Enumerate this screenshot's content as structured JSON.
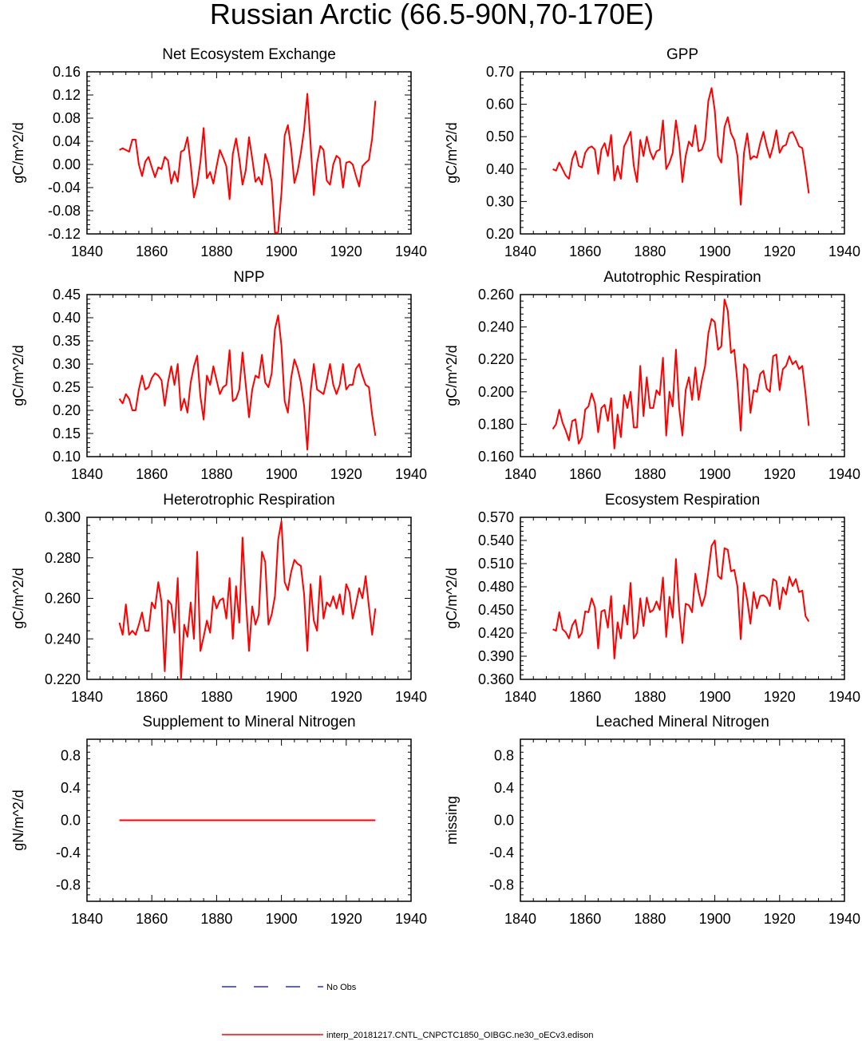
{
  "figure": {
    "title": "Russian Arctic (66.5-90N,70-170E)"
  },
  "colors": {
    "series": "#ff0000",
    "obs": "#0000cc",
    "axis": "#000000"
  },
  "legend": {
    "obs_label": "No Obs",
    "model_label": "interp_20181217.CNTL_CNPCTC1850_OIBGC.ne30_oECv3.edison"
  },
  "chart_data": [
    {
      "id": "nee",
      "type": "line",
      "title": "Net Ecosystem Exchange",
      "ylabel": "gC/m^2/d",
      "xlim": [
        1840,
        1940
      ],
      "xticks": [
        1840,
        1860,
        1880,
        1900,
        1920,
        1940
      ],
      "xtick_labels": [
        "1840",
        "1860",
        "1880",
        "1900",
        "1920",
        "1940"
      ],
      "ylim": [
        -0.12,
        0.16
      ],
      "yticks": [
        -0.12,
        -0.08,
        -0.04,
        0.0,
        0.04,
        0.08,
        0.12,
        0.16
      ],
      "ytick_labels": [
        "-0.12",
        "-0.08",
        "-0.04",
        "0.00",
        "0.04",
        "0.08",
        "0.12",
        "0.16"
      ],
      "x_start": 1850,
      "values": [
        0.025,
        0.028,
        0.025,
        0.022,
        0.043,
        0.043,
        0.0,
        -0.02,
        0.005,
        0.013,
        -0.005,
        -0.022,
        -0.005,
        -0.008,
        0.013,
        0.007,
        -0.033,
        -0.012,
        -0.03,
        0.022,
        0.025,
        0.047,
        0.0,
        -0.057,
        -0.035,
        0.005,
        0.063,
        -0.024,
        -0.013,
        -0.033,
        -0.003,
        0.025,
        0.012,
        -0.003,
        -0.06,
        0.018,
        0.045,
        0.01,
        -0.035,
        -0.01,
        0.047,
        0.01,
        -0.03,
        -0.022,
        -0.035,
        0.018,
        0.0,
        -0.03,
        -0.118,
        -0.117,
        -0.05,
        0.05,
        0.068,
        0.028,
        -0.032,
        -0.012,
        0.02,
        0.06,
        0.122,
        0.035,
        -0.053,
        0.002,
        0.032,
        0.025,
        -0.028,
        -0.035,
        0.0,
        0.015,
        0.01,
        -0.04,
        0.003,
        0.005,
        0.0,
        -0.02,
        -0.038,
        -0.003,
        0.003,
        0.008,
        0.045,
        0.11
      ]
    },
    {
      "id": "gpp",
      "type": "line",
      "title": "GPP",
      "ylabel": "gC/m^2/d",
      "xlim": [
        1840,
        1940
      ],
      "xticks": [
        1840,
        1860,
        1880,
        1900,
        1920,
        1940
      ],
      "xtick_labels": [
        "1840",
        "1860",
        "1880",
        "1900",
        "1920",
        "1940"
      ],
      "ylim": [
        0.2,
        0.7
      ],
      "yticks": [
        0.2,
        0.3,
        0.4,
        0.5,
        0.6,
        0.7
      ],
      "ytick_labels": [
        "0.20",
        "0.30",
        "0.40",
        "0.50",
        "0.60",
        "0.70"
      ],
      "x_start": 1850,
      "values": [
        0.4,
        0.395,
        0.42,
        0.4,
        0.38,
        0.37,
        0.43,
        0.455,
        0.41,
        0.405,
        0.45,
        0.465,
        0.47,
        0.46,
        0.385,
        0.46,
        0.48,
        0.44,
        0.505,
        0.365,
        0.41,
        0.37,
        0.47,
        0.49,
        0.515,
        0.41,
        0.36,
        0.49,
        0.44,
        0.5,
        0.455,
        0.43,
        0.455,
        0.46,
        0.55,
        0.4,
        0.42,
        0.45,
        0.55,
        0.48,
        0.36,
        0.44,
        0.485,
        0.47,
        0.535,
        0.455,
        0.46,
        0.49,
        0.61,
        0.65,
        0.58,
        0.44,
        0.42,
        0.53,
        0.56,
        0.51,
        0.49,
        0.44,
        0.29,
        0.45,
        0.51,
        0.43,
        0.44,
        0.435,
        0.48,
        0.515,
        0.47,
        0.435,
        0.47,
        0.52,
        0.45,
        0.47,
        0.475,
        0.51,
        0.515,
        0.495,
        0.47,
        0.465,
        0.4,
        0.325
      ]
    },
    {
      "id": "npp",
      "type": "line",
      "title": "NPP",
      "ylabel": "gC/m^2/d",
      "xlim": [
        1840,
        1940
      ],
      "xticks": [
        1840,
        1860,
        1880,
        1900,
        1920,
        1940
      ],
      "xtick_labels": [
        "1840",
        "1860",
        "1880",
        "1900",
        "1920",
        "1940"
      ],
      "ylim": [
        0.1,
        0.45
      ],
      "yticks": [
        0.1,
        0.15,
        0.2,
        0.25,
        0.3,
        0.35,
        0.4,
        0.45
      ],
      "ytick_labels": [
        "0.10",
        "0.15",
        "0.20",
        "0.25",
        "0.30",
        "0.35",
        "0.40",
        "0.45"
      ],
      "x_start": 1850,
      "values": [
        0.225,
        0.215,
        0.235,
        0.225,
        0.2,
        0.2,
        0.245,
        0.275,
        0.245,
        0.25,
        0.27,
        0.28,
        0.275,
        0.265,
        0.21,
        0.26,
        0.295,
        0.255,
        0.3,
        0.2,
        0.225,
        0.195,
        0.26,
        0.295,
        0.318,
        0.23,
        0.18,
        0.275,
        0.255,
        0.295,
        0.265,
        0.235,
        0.25,
        0.255,
        0.33,
        0.22,
        0.225,
        0.245,
        0.325,
        0.255,
        0.185,
        0.245,
        0.275,
        0.27,
        0.32,
        0.26,
        0.25,
        0.28,
        0.375,
        0.405,
        0.34,
        0.22,
        0.195,
        0.27,
        0.31,
        0.29,
        0.26,
        0.21,
        0.115,
        0.24,
        0.3,
        0.245,
        0.24,
        0.235,
        0.265,
        0.3,
        0.255,
        0.235,
        0.255,
        0.3,
        0.245,
        0.255,
        0.255,
        0.29,
        0.3,
        0.275,
        0.255,
        0.25,
        0.19,
        0.145
      ]
    },
    {
      "id": "ar",
      "type": "line",
      "title": "Autotrophic Respiration",
      "ylabel": "gC/m^2/d",
      "xlim": [
        1840,
        1940
      ],
      "xticks": [
        1840,
        1860,
        1880,
        1900,
        1920,
        1940
      ],
      "xtick_labels": [
        "1840",
        "1860",
        "1880",
        "1900",
        "1920",
        "1940"
      ],
      "ylim": [
        0.16,
        0.26
      ],
      "yticks": [
        0.16,
        0.18,
        0.2,
        0.22,
        0.24,
        0.26
      ],
      "ytick_labels": [
        "0.160",
        "0.180",
        "0.200",
        "0.220",
        "0.240",
        "0.260"
      ],
      "x_start": 1850,
      "values": [
        0.177,
        0.18,
        0.189,
        0.181,
        0.176,
        0.17,
        0.182,
        0.183,
        0.168,
        0.172,
        0.189,
        0.191,
        0.199,
        0.193,
        0.175,
        0.19,
        0.192,
        0.182,
        0.196,
        0.165,
        0.186,
        0.172,
        0.198,
        0.19,
        0.2,
        0.178,
        0.178,
        0.216,
        0.185,
        0.209,
        0.19,
        0.19,
        0.201,
        0.198,
        0.221,
        0.173,
        0.2,
        0.191,
        0.226,
        0.19,
        0.173,
        0.201,
        0.209,
        0.195,
        0.215,
        0.195,
        0.207,
        0.216,
        0.236,
        0.245,
        0.243,
        0.226,
        0.228,
        0.257,
        0.25,
        0.224,
        0.226,
        0.205,
        0.176,
        0.217,
        0.214,
        0.187,
        0.201,
        0.2,
        0.211,
        0.213,
        0.202,
        0.2,
        0.222,
        0.223,
        0.201,
        0.214,
        0.216,
        0.222,
        0.217,
        0.219,
        0.214,
        0.216,
        0.199,
        0.179
      ]
    },
    {
      "id": "hr",
      "type": "line",
      "title": "Heterotrophic Respiration",
      "ylabel": "gC/m^2/d",
      "xlim": [
        1840,
        1940
      ],
      "xticks": [
        1840,
        1860,
        1880,
        1900,
        1920,
        1940
      ],
      "xtick_labels": [
        "1840",
        "1860",
        "1880",
        "1900",
        "1920",
        "1940"
      ],
      "ylim": [
        0.22,
        0.3
      ],
      "yticks": [
        0.22,
        0.24,
        0.26,
        0.28,
        0.3
      ],
      "ytick_labels": [
        "0.220",
        "0.240",
        "0.260",
        "0.280",
        "0.300"
      ],
      "x_start": 1850,
      "values": [
        0.248,
        0.242,
        0.257,
        0.242,
        0.244,
        0.242,
        0.247,
        0.253,
        0.244,
        0.244,
        0.258,
        0.255,
        0.268,
        0.258,
        0.224,
        0.259,
        0.257,
        0.243,
        0.27,
        0.22,
        0.247,
        0.241,
        0.258,
        0.24,
        0.283,
        0.234,
        0.241,
        0.249,
        0.243,
        0.261,
        0.255,
        0.259,
        0.26,
        0.25,
        0.27,
        0.24,
        0.266,
        0.248,
        0.29,
        0.26,
        0.234,
        0.256,
        0.247,
        0.252,
        0.283,
        0.278,
        0.247,
        0.252,
        0.261,
        0.289,
        0.298,
        0.268,
        0.264,
        0.273,
        0.279,
        0.277,
        0.276,
        0.262,
        0.234,
        0.267,
        0.249,
        0.244,
        0.271,
        0.25,
        0.258,
        0.256,
        0.261,
        0.255,
        0.262,
        0.252,
        0.267,
        0.263,
        0.25,
        0.257,
        0.265,
        0.26,
        0.271,
        0.256,
        0.242,
        0.255
      ]
    },
    {
      "id": "er",
      "type": "line",
      "title": "Ecosystem Respiration",
      "ylabel": "gC/m^2/d",
      "xlim": [
        1840,
        1940
      ],
      "xticks": [
        1840,
        1860,
        1880,
        1900,
        1920,
        1940
      ],
      "xtick_labels": [
        "1840",
        "1860",
        "1880",
        "1900",
        "1920",
        "1940"
      ],
      "ylim": [
        0.36,
        0.57
      ],
      "yticks": [
        0.36,
        0.39,
        0.42,
        0.45,
        0.48,
        0.51,
        0.54,
        0.57
      ],
      "ytick_labels": [
        "0.360",
        "0.390",
        "0.420",
        "0.450",
        "0.480",
        "0.510",
        "0.540",
        "0.570"
      ],
      "x_start": 1850,
      "values": [
        0.425,
        0.423,
        0.447,
        0.425,
        0.421,
        0.413,
        0.43,
        0.437,
        0.414,
        0.42,
        0.448,
        0.447,
        0.465,
        0.453,
        0.4,
        0.448,
        0.45,
        0.427,
        0.468,
        0.387,
        0.434,
        0.413,
        0.456,
        0.431,
        0.485,
        0.413,
        0.42,
        0.465,
        0.429,
        0.466,
        0.447,
        0.45,
        0.461,
        0.45,
        0.492,
        0.415,
        0.467,
        0.44,
        0.516,
        0.45,
        0.407,
        0.458,
        0.456,
        0.447,
        0.497,
        0.473,
        0.455,
        0.468,
        0.499,
        0.533,
        0.54,
        0.494,
        0.49,
        0.53,
        0.528,
        0.5,
        0.502,
        0.48,
        0.412,
        0.485,
        0.463,
        0.432,
        0.473,
        0.452,
        0.468,
        0.469,
        0.466,
        0.455,
        0.49,
        0.487,
        0.451,
        0.479,
        0.47,
        0.493,
        0.481,
        0.49,
        0.473,
        0.475,
        0.442,
        0.435
      ]
    },
    {
      "id": "smin",
      "type": "line",
      "title": "Supplement to Mineral Nitrogen",
      "ylabel": "gN/m^2/d",
      "xlim": [
        1840,
        1940
      ],
      "xticks": [
        1840,
        1860,
        1880,
        1900,
        1920,
        1940
      ],
      "xtick_labels": [
        "1840",
        "1860",
        "1880",
        "1900",
        "1920",
        "1940"
      ],
      "ylim": [
        -1.0,
        1.0
      ],
      "yticks": [
        -0.8,
        -0.4,
        0.0,
        0.4,
        0.8
      ],
      "ytick_labels": [
        "-0.8",
        "-0.4",
        "0.0",
        "0.4",
        "0.8"
      ],
      "x_start": 1850,
      "values": [
        0,
        0,
        0,
        0,
        0,
        0,
        0,
        0,
        0,
        0,
        0,
        0,
        0,
        0,
        0,
        0,
        0,
        0,
        0,
        0,
        0,
        0,
        0,
        0,
        0,
        0,
        0,
        0,
        0,
        0,
        0,
        0,
        0,
        0,
        0,
        0,
        0,
        0,
        0,
        0,
        0,
        0,
        0,
        0,
        0,
        0,
        0,
        0,
        0,
        0,
        0,
        0,
        0,
        0,
        0,
        0,
        0,
        0,
        0,
        0,
        0,
        0,
        0,
        0,
        0,
        0,
        0,
        0,
        0,
        0,
        0,
        0,
        0,
        0,
        0,
        0,
        0,
        0,
        0,
        0
      ]
    },
    {
      "id": "leach",
      "type": "line",
      "title": "Leached Mineral Nitrogen",
      "ylabel": "missing",
      "xlim": [
        1840,
        1940
      ],
      "xticks": [
        1840,
        1860,
        1880,
        1900,
        1920,
        1940
      ],
      "xtick_labels": [
        "1840",
        "1860",
        "1880",
        "1900",
        "1920",
        "1940"
      ],
      "ylim": [
        -1.0,
        1.0
      ],
      "yticks": [
        -0.8,
        -0.4,
        0.0,
        0.4,
        0.8
      ],
      "ytick_labels": [
        "-0.8",
        "-0.4",
        "0.0",
        "0.4",
        "0.8"
      ],
      "x_start": 1850,
      "values": []
    }
  ]
}
